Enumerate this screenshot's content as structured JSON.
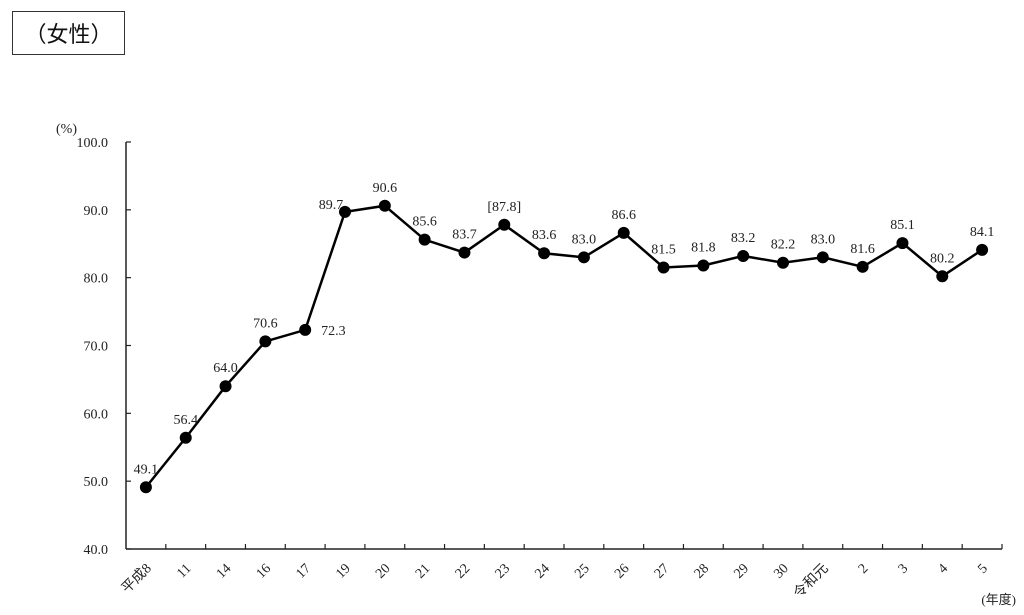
{
  "panel_title": "（女性）",
  "chart_data": {
    "type": "line",
    "title": "（女性）",
    "ylabel": "(%)",
    "xlabel": "(年度)",
    "ylim": [
      40,
      100
    ],
    "yticks": [
      "40.0",
      "50.0",
      "60.0",
      "70.0",
      "80.0",
      "90.0",
      "100.0"
    ],
    "categories": [
      "平成8",
      "11",
      "14",
      "16",
      "17",
      "19",
      "20",
      "21",
      "22",
      "23",
      "24",
      "25",
      "26",
      "27",
      "28",
      "29",
      "30",
      "令和元",
      "2",
      "3",
      "4",
      "5"
    ],
    "values": [
      49.1,
      56.4,
      64.0,
      70.6,
      72.3,
      89.7,
      90.6,
      85.6,
      83.7,
      87.8,
      83.6,
      83.0,
      86.6,
      81.5,
      81.8,
      83.2,
      82.2,
      83.0,
      81.6,
      85.1,
      80.2,
      84.1
    ],
    "data_labels": [
      "49.1",
      "56.4",
      "64.0",
      "70.6",
      "72.3",
      "89.7",
      "90.6",
      "85.6",
      "83.7",
      "[87.8]",
      "83.6",
      "83.0",
      "86.6",
      "81.5",
      "81.8",
      "83.2",
      "82.2",
      "83.0",
      "81.6",
      "85.1",
      "80.2",
      "84.1"
    ],
    "grid": false,
    "legend": "none"
  }
}
